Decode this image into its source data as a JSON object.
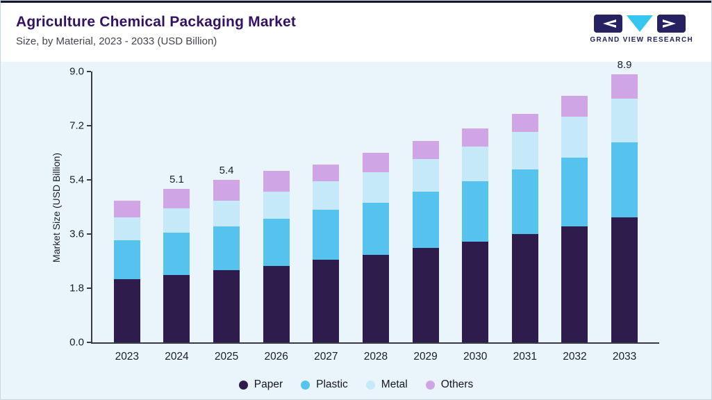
{
  "header": {
    "title": "Agriculture Chemical Packaging Market",
    "subtitle": "Size, by Material, 2023 - 2033 (USD Billion)",
    "logo_text": "GRAND VIEW RESEARCH"
  },
  "colors": {
    "top_accent_bar": "#16142e",
    "panel_background": "#e9f5fb",
    "title_text": "#331266",
    "axis": "#3a3a45",
    "logo_navy": "#262262",
    "logo_cyan": "#35c7f0"
  },
  "chart_data": {
    "type": "bar",
    "stacked": true,
    "title": "Agriculture Chemical Packaging Market Size, by Material, 2023 - 2033 (USD Billion)",
    "categories": [
      "2023",
      "2024",
      "2025",
      "2026",
      "2027",
      "2028",
      "2029",
      "2030",
      "2031",
      "2032",
      "2033"
    ],
    "series": [
      {
        "name": "Paper",
        "color": "#2e1c4d",
        "values": [
          2.1,
          2.25,
          2.4,
          2.55,
          2.75,
          2.9,
          3.15,
          3.35,
          3.6,
          3.85,
          4.15
        ]
      },
      {
        "name": "Plastic",
        "color": "#55c3ed",
        "values": [
          1.3,
          1.4,
          1.45,
          1.55,
          1.65,
          1.75,
          1.85,
          2.0,
          2.15,
          2.3,
          2.5
        ]
      },
      {
        "name": "Metal",
        "color": "#c6e9f9",
        "values": [
          0.75,
          0.8,
          0.85,
          0.9,
          0.95,
          1.0,
          1.1,
          1.15,
          1.25,
          1.35,
          1.45
        ]
      },
      {
        "name": "Others",
        "color": "#d0a5e6",
        "values": [
          0.55,
          0.65,
          0.7,
          0.7,
          0.55,
          0.65,
          0.6,
          0.6,
          0.6,
          0.7,
          0.8
        ]
      }
    ],
    "totals": [
      4.7,
      5.1,
      5.4,
      5.7,
      5.9,
      6.3,
      6.7,
      7.1,
      7.6,
      8.2,
      8.9
    ],
    "bar_total_labels": [
      "",
      "5.1",
      "5.4",
      "",
      "",
      "",
      "",
      "",
      "",
      "",
      "8.9"
    ],
    "xlabel": "",
    "ylabel": "Market Size (USD Billion)",
    "ylim": [
      0,
      9.0
    ],
    "yticks": [
      "0.0",
      "1.8",
      "3.6",
      "5.4",
      "7.2",
      "9.0"
    ],
    "grid": false,
    "legend_position": "bottom"
  }
}
